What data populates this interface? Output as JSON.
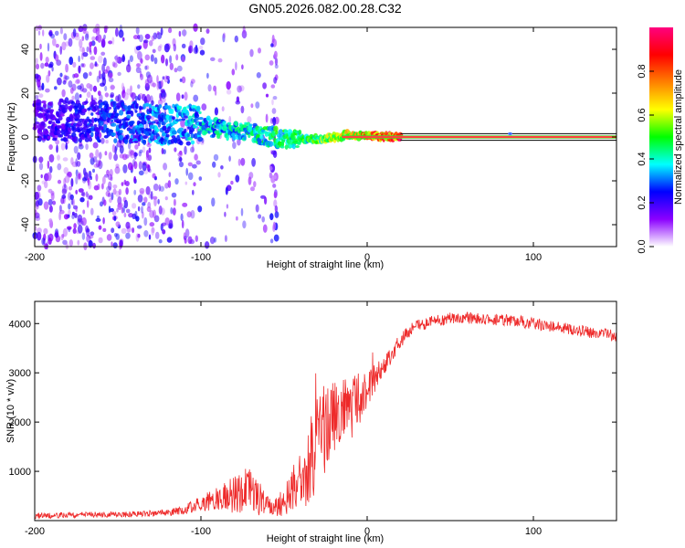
{
  "title": "GN05.2026.082.00.28.C32",
  "chart_data": [
    {
      "type": "heatmap",
      "name": "spectrogram",
      "xlabel": "Height of straight line (km)",
      "ylabel": "Frequency (Hz)",
      "xlim": [
        -200,
        150
      ],
      "ylim": [
        -50,
        50
      ],
      "xticks": [
        -200,
        -100,
        0,
        100
      ],
      "xtick_labels": [
        "-200",
        "-100",
        "0",
        "100"
      ],
      "yticks": [
        -40,
        -20,
        0,
        20,
        40
      ],
      "ytick_labels": [
        "-40",
        "-20",
        "0",
        "20",
        "40"
      ],
      "colorbar": {
        "label": "Normalized spectral amplitude",
        "range": [
          0,
          1
        ],
        "ticks": [
          0.0,
          0.2,
          0.4,
          0.6,
          0.8
        ],
        "tick_labels": [
          "0.0",
          "0.2",
          "0.4",
          "0.6",
          "0.8"
        ],
        "colors": [
          "#ffffff",
          "#8b00ff",
          "#0000ff",
          "#00ffff",
          "#00ff00",
          "#ffff00",
          "#ff8000",
          "#ff0000",
          "#ff007f"
        ]
      },
      "features": [
        {
          "name": "noise-scatter",
          "x_range": [
            -200,
            -60
          ],
          "freq_range": [
            -50,
            50
          ],
          "amplitude": 0.1
        },
        {
          "name": "main-signal-trace",
          "x": [
            -200,
            -150,
            -100,
            -70,
            -50,
            -30,
            -10,
            0,
            20,
            150
          ],
          "freq": [
            8,
            7,
            5,
            2,
            -1,
            -1,
            1,
            0.5,
            0,
            0
          ],
          "amplitude": [
            0.2,
            0.3,
            0.4,
            0.45,
            0.5,
            0.55,
            0.7,
            0.85,
            0.98,
            0.98
          ]
        },
        {
          "name": "side-band-upper",
          "x_range": [
            20,
            150
          ],
          "freq": 1.5
        },
        {
          "name": "side-band-lower",
          "x_range": [
            20,
            150
          ],
          "freq": -1.5
        }
      ]
    },
    {
      "type": "line",
      "name": "snr",
      "xlabel": "Height of straight line (km)",
      "ylabel": "SNR (10 * v/v)",
      "xlim": [
        -200,
        150
      ],
      "ylim": [
        0,
        4450
      ],
      "xticks": [
        -200,
        -100,
        0,
        100
      ],
      "xtick_labels": [
        "-200",
        "-100",
        "0",
        "100"
      ],
      "yticks": [
        1000,
        2000,
        3000,
        4000
      ],
      "ytick_labels": [
        "1000",
        "2000",
        "3000",
        "4000"
      ],
      "color": "#ee2a2a",
      "series": [
        {
          "name": "SNR envelope",
          "x": [
            -200,
            -180,
            -160,
            -140,
            -120,
            -110,
            -100,
            -90,
            -80,
            -70,
            -60,
            -55,
            -50,
            -45,
            -40,
            -35,
            -30,
            -25,
            -20,
            -15,
            -10,
            -5,
            0,
            5,
            10,
            15,
            20,
            25,
            30,
            40,
            50,
            60,
            70,
            80,
            90,
            100,
            110,
            120,
            130,
            140,
            150
          ],
          "base": [
            100,
            110,
            120,
            130,
            160,
            220,
            350,
            450,
            550,
            600,
            300,
            250,
            400,
            650,
            900,
            1200,
            1600,
            1900,
            2100,
            2200,
            2300,
            2500,
            2700,
            2900,
            3100,
            3400,
            3650,
            3850,
            3950,
            4050,
            4100,
            4120,
            4100,
            4080,
            4050,
            4000,
            3950,
            3900,
            3850,
            3800,
            3750
          ],
          "noise": [
            60,
            60,
            60,
            60,
            70,
            90,
            150,
            250,
            400,
            500,
            200,
            200,
            300,
            500,
            700,
            900,
            1000,
            900,
            800,
            700,
            700,
            600,
            400,
            300,
            200,
            180,
            150,
            140,
            120,
            120,
            120,
            120,
            120,
            120,
            120,
            120,
            120,
            120,
            120,
            120,
            120
          ]
        }
      ]
    }
  ]
}
